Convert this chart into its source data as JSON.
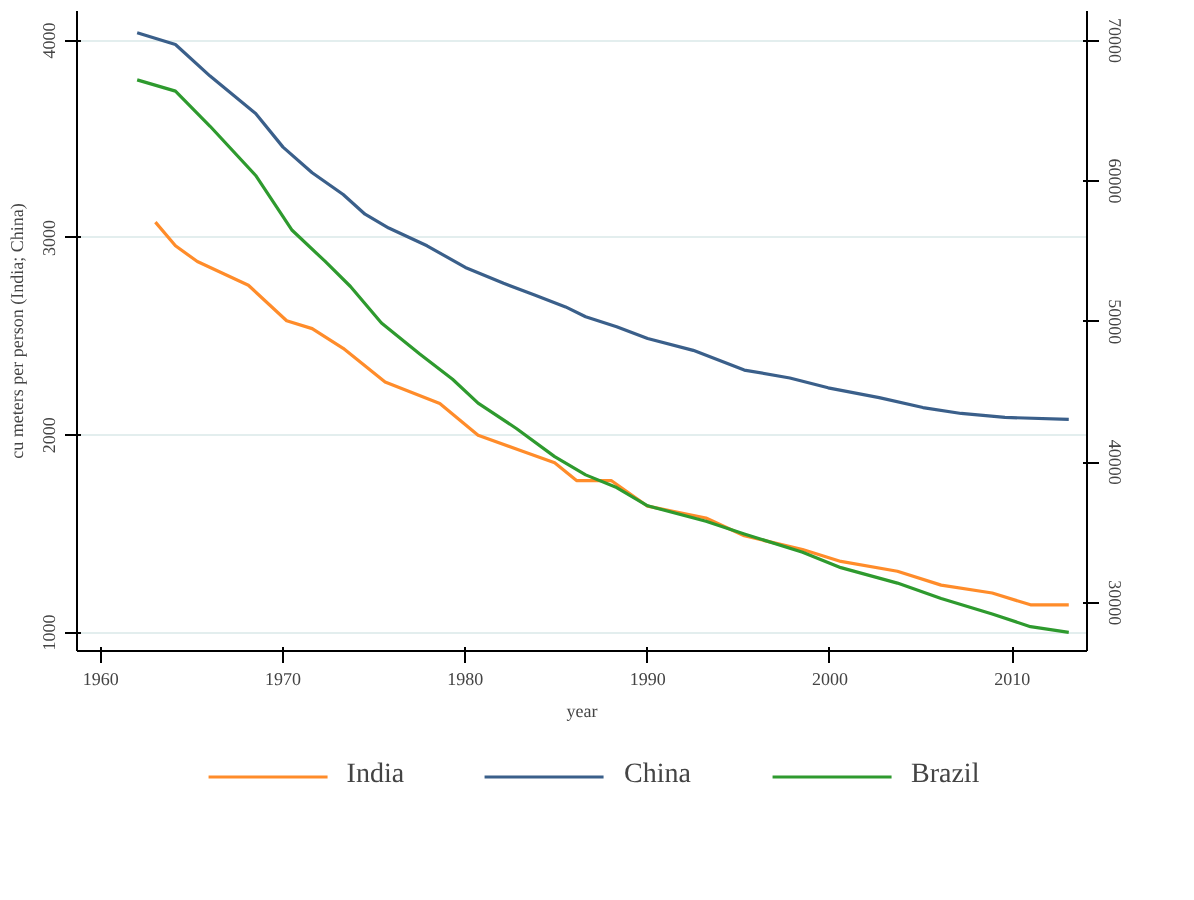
{
  "chart_data": {
    "type": "line",
    "xlabel": "year",
    "ylabel": "cu meters per person (India; China)",
    "xlim": [
      1958.7,
      2014.1
    ],
    "xticks": [
      1960,
      1970,
      1980,
      1990,
      2000,
      2010
    ],
    "ylim": [
      906,
      4150
    ],
    "yticks": [
      1000,
      2000,
      3000,
      4000
    ],
    "y2lim": [
      26570,
      72100
    ],
    "y2ticks": [
      30000,
      40000,
      50000,
      60000,
      70000
    ],
    "grid": "y",
    "legend": "bottom",
    "line_style": "solid",
    "series": [
      {
        "name": "India",
        "color": "#ff8c2a",
        "x": [
          1963.0,
          1964.1,
          1965.3,
          1968.1,
          1970.2,
          1971.6,
          1973.3,
          1975.6,
          1978.6,
          1980.7,
          1983.1,
          1984.9,
          1986.1,
          1988.0,
          1990.0,
          1993.2,
          1995.3,
          1998.5,
          2000.6,
          2003.7,
          2006.1,
          2008.9,
          2011.0,
          2013.1
        ],
        "values": [
          3080,
          2960,
          2880,
          2760,
          2580,
          2540,
          2440,
          2270,
          2160,
          2000,
          1920,
          1860,
          1770,
          1770,
          1640,
          1580,
          1490,
          1420,
          1360,
          1310,
          1240,
          1200,
          1140,
          1140
        ]
      },
      {
        "name": "China",
        "color": "#3a5f8a",
        "x": [
          1962.0,
          1964.1,
          1966.0,
          1968.5,
          1970.0,
          1971.6,
          1973.3,
          1974.5,
          1975.8,
          1977.9,
          1980.0,
          1982.1,
          1983.8,
          1985.5,
          1986.6,
          1988.3,
          1990.0,
          1992.5,
          1995.3,
          1997.8,
          1999.9,
          2002.7,
          2005.1,
          2007.2,
          2009.6,
          2013.1
        ],
        "values": [
          4040,
          3980,
          3820,
          3630,
          3460,
          3330,
          3220,
          3120,
          3050,
          2960,
          2850,
          2770,
          2710,
          2650,
          2600,
          2550,
          2490,
          2430,
          2330,
          2290,
          2240,
          2190,
          2140,
          2110,
          2090,
          2080
        ]
      },
      {
        "name": "Brazil",
        "color": "#2e9a2e",
        "axis": "y2",
        "x": [
          1962.0,
          1964.1,
          1966.0,
          1968.5,
          1970.5,
          1972.3,
          1973.7,
          1975.4,
          1977.5,
          1979.3,
          1980.7,
          1982.8,
          1984.9,
          1986.6,
          1988.3,
          1990.0,
          1993.2,
          1995.3,
          1998.5,
          2000.6,
          2003.7,
          2006.1,
          2008.9,
          2011.0,
          2013.1
        ],
        "values": [
          67200,
          66400,
          63900,
          60400,
          56500,
          54300,
          52500,
          49900,
          47700,
          45900,
          44200,
          42400,
          40400,
          39100,
          38200,
          36900,
          35800,
          34900,
          33600,
          32500,
          31400,
          30300,
          29200,
          28300,
          27900
        ]
      }
    ]
  }
}
